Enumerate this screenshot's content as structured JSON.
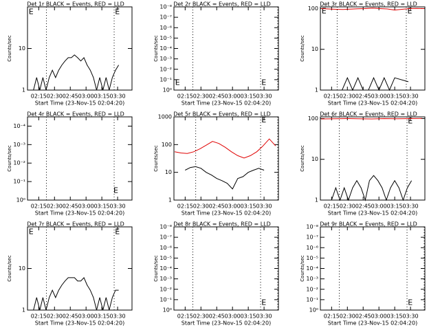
{
  "chart_data": [
    {
      "type": "line",
      "title": "Det 1r BLACK = Events, RED = LLD",
      "xlabel": "Start Time (23-Nov-15 02:04:20)",
      "ylabel": "Counts/sec",
      "log": true,
      "xlim": [
        4.33,
        103.67
      ],
      "xticks": [
        {
          "value": 15,
          "label": "02:15"
        },
        {
          "value": 30,
          "label": "02:30"
        },
        {
          "value": 45,
          "label": "02:45"
        },
        {
          "value": 60,
          "label": "03:00"
        },
        {
          "value": 75,
          "label": "03:15"
        },
        {
          "value": 90,
          "label": "03:30"
        }
      ],
      "ylim": [
        1,
        100
      ],
      "yticks": [
        1,
        10
      ],
      "event_lines": [
        22.3,
        86.7
      ],
      "annotations": [
        {
          "text": "E",
          "x": 5.5,
          "y": 75
        },
        {
          "text": "E",
          "x": 87.5,
          "y": 75
        }
      ],
      "series": [
        {
          "name": "BLACK",
          "color": "#000000",
          "x": [
            10,
            13,
            16,
            19,
            22,
            25,
            28,
            31,
            34,
            37,
            40,
            43,
            46,
            49,
            52,
            55,
            58,
            61,
            64,
            67,
            70,
            73,
            76,
            79,
            82,
            85,
            88,
            91
          ],
          "values": [
            1,
            2,
            1,
            2,
            1,
            2,
            3,
            2,
            3,
            4,
            5,
            6,
            6,
            7,
            6,
            5,
            6,
            4,
            3,
            2,
            1,
            2,
            1,
            2,
            1,
            2,
            3,
            4
          ]
        }
      ]
    },
    {
      "type": "line",
      "title": "Det 2r BLACK = Events, RED = LLD",
      "xlabel": "Start Time (23-Nov-15 02:04:20)",
      "ylabel": "Counts/sec",
      "log": false,
      "xlim": [
        4.33,
        103.67
      ],
      "xticks": [
        {
          "value": 15,
          "label": "02:15"
        },
        {
          "value": 30,
          "label": "02:30"
        },
        {
          "value": 45,
          "label": "02:45"
        },
        {
          "value": 60,
          "label": "03:00"
        },
        {
          "value": 75,
          "label": "03:15"
        },
        {
          "value": 90,
          "label": "03:30"
        }
      ],
      "ylim": [
        0,
        8
      ],
      "yticks": [
        {
          "value": 0,
          "label": "10⁰"
        },
        {
          "value": 1,
          "label": "10⁻¹"
        },
        {
          "value": 2,
          "label": "10⁻²"
        },
        {
          "value": 3,
          "label": "10⁻³"
        },
        {
          "value": 4,
          "label": "10⁻⁴"
        },
        {
          "value": 5,
          "label": "10⁻⁵"
        },
        {
          "value": 6,
          "label": "10⁻⁶"
        },
        {
          "value": 7,
          "label": "10⁻⁷"
        },
        {
          "value": 8,
          "label": "10⁻⁸"
        }
      ],
      "event_lines": [
        22.3,
        86.7,
        103
      ],
      "annotations": [
        {
          "text": "E",
          "x": 5.5,
          "y": 0.7
        },
        {
          "text": "E",
          "x": 87.5,
          "y": 0.7
        }
      ],
      "series": []
    },
    {
      "type": "line",
      "title": "Det 3r BLACK = Events, RED = LLD",
      "xlabel": "Start Time (23-Nov-15 02:04:20)",
      "ylabel": "Counts/sec",
      "log": true,
      "xlim": [
        4.33,
        103.67
      ],
      "xticks": [
        {
          "value": 15,
          "label": "02:15"
        },
        {
          "value": 30,
          "label": "02:30"
        },
        {
          "value": 45,
          "label": "02:45"
        },
        {
          "value": 60,
          "label": "03:00"
        },
        {
          "value": 75,
          "label": "03:15"
        },
        {
          "value": 90,
          "label": "03:30"
        }
      ],
      "ylim": [
        1,
        110
      ],
      "yticks": [
        1,
        10,
        100
      ],
      "event_lines": [
        20.3,
        86
      ],
      "annotations": [
        {
          "text": "E",
          "x": 5.5,
          "y": 85
        },
        {
          "text": "E",
          "x": 87,
          "y": 85
        }
      ],
      "series": [
        {
          "name": "BLACK",
          "color": "#000000",
          "x": [
            25,
            30,
            35,
            40,
            45,
            50,
            55,
            60,
            65,
            70,
            75,
            88
          ],
          "values": [
            1,
            2,
            1,
            2,
            1,
            1,
            2,
            1,
            2,
            1,
            2,
            1.6
          ]
        },
        {
          "name": "RED",
          "color": "#e00000",
          "x": [
            5,
            12,
            19,
            26,
            33,
            40,
            47,
            54,
            61,
            68,
            75,
            82,
            89,
            96,
            103
          ],
          "values": [
            100,
            98,
            96,
            95,
            97,
            99,
            100,
            102,
            100,
            98,
            92,
            96,
            100,
            101,
            100
          ]
        }
      ]
    },
    {
      "type": "line",
      "title": "Det 4r BLACK = Events, RED = LLD",
      "xlabel": "Start Time (23-Nov-15 02:04:20)",
      "ylabel": "Counts/sec",
      "log": false,
      "xlim": [
        4.33,
        103.67
      ],
      "xticks": [
        {
          "value": 15,
          "label": "02:15"
        },
        {
          "value": 30,
          "label": "02:30"
        },
        {
          "value": 45,
          "label": "02:45"
        },
        {
          "value": 60,
          "label": "03:00"
        },
        {
          "value": 75,
          "label": "03:15"
        },
        {
          "value": 90,
          "label": "03:30"
        }
      ],
      "ylim": [
        0,
        4.5
      ],
      "yticks": [
        {
          "value": 0,
          "label": "10⁰"
        },
        {
          "value": 1,
          "label": "10⁻¹"
        },
        {
          "value": 2,
          "label": "10⁻²"
        },
        {
          "value": 3,
          "label": "10⁻³"
        },
        {
          "value": 4,
          "label": "10⁻⁴"
        }
      ],
      "event_lines": [
        22.3,
        86.7
      ],
      "annotations": [
        {
          "text": "E",
          "x": 86,
          "y": 0.5
        }
      ],
      "series": []
    },
    {
      "type": "line",
      "title": "Det 5r BLACK = Events, RED = LLD",
      "xlabel": "Start Time (23-Nov-15 02:04:20)",
      "ylabel": "Counts/sec",
      "log": true,
      "xlim": [
        4.33,
        103.67
      ],
      "xticks": [
        {
          "value": 15,
          "label": "02:15"
        },
        {
          "value": 30,
          "label": "02:30"
        },
        {
          "value": 45,
          "label": "02:45"
        },
        {
          "value": 60,
          "label": "03:00"
        },
        {
          "value": 75,
          "label": "03:15"
        },
        {
          "value": 90,
          "label": "03:30"
        }
      ],
      "ylim": [
        1,
        1000
      ],
      "yticks": [
        1,
        10,
        100,
        1000
      ],
      "event_lines": [
        25,
        86.7,
        103
      ],
      "annotations": [
        {
          "text": "E",
          "x": 87.5,
          "y": 750
        }
      ],
      "series": [
        {
          "name": "BLACK",
          "color": "#000000",
          "x": [
            15,
            20,
            25,
            30,
            35,
            40,
            45,
            50,
            55,
            60,
            65,
            70,
            75,
            80,
            85,
            90
          ],
          "values": [
            12,
            15,
            16,
            14,
            10,
            8,
            6,
            5,
            4,
            2.5,
            6,
            7,
            10,
            12,
            14,
            12
          ]
        },
        {
          "name": "RED",
          "color": "#e00000",
          "x": [
            5,
            11,
            17,
            23,
            29,
            35,
            41,
            47,
            53,
            59,
            65,
            71,
            77,
            83,
            89,
            95,
            101
          ],
          "values": [
            55,
            50,
            48,
            55,
            70,
            95,
            130,
            110,
            80,
            55,
            40,
            33,
            40,
            55,
            90,
            160,
            90
          ]
        }
      ]
    },
    {
      "type": "line",
      "title": "Det 6r BLACK = Events, RED = LLD",
      "xlabel": "Start Time (23-Nov-15 02:04:20)",
      "ylabel": "Counts/sec",
      "log": true,
      "xlim": [
        4.33,
        103.67
      ],
      "xticks": [
        {
          "value": 15,
          "label": "02:15"
        },
        {
          "value": 30,
          "label": "02:30"
        },
        {
          "value": 45,
          "label": "02:45"
        },
        {
          "value": 60,
          "label": "03:00"
        },
        {
          "value": 75,
          "label": "03:15"
        },
        {
          "value": 90,
          "label": "03:30"
        }
      ],
      "ylim": [
        1,
        110
      ],
      "yticks": [
        1,
        10,
        100
      ],
      "event_lines": [
        22.3,
        86.7
      ],
      "annotations": [
        {
          "text": "E",
          "x": 87.5,
          "y": 85
        }
      ],
      "series": [
        {
          "name": "BLACK",
          "color": "#000000",
          "x": [
            15,
            19,
            23,
            27,
            31,
            35,
            39,
            43,
            47,
            51,
            55,
            59,
            63,
            67,
            71,
            75,
            79,
            83,
            87,
            91
          ],
          "values": [
            1,
            2,
            1,
            2,
            1,
            2,
            3,
            2,
            1,
            3,
            4,
            3,
            2,
            1,
            2,
            3,
            2,
            1,
            2,
            3
          ]
        },
        {
          "name": "RED",
          "color": "#e00000",
          "x": [
            5,
            17,
            29,
            41,
            53,
            65,
            77,
            89,
            101
          ],
          "values": [
            98,
            99,
            100,
            99,
            98,
            100,
            99,
            100,
            101
          ]
        }
      ]
    },
    {
      "type": "line",
      "title": "Det 7r BLACK = Events, RED = LLD",
      "xlabel": "Start Time (23-Nov-15 02:04:20)",
      "ylabel": "Counts/sec",
      "log": true,
      "xlim": [
        4.33,
        103.67
      ],
      "xticks": [
        {
          "value": 15,
          "label": "02:15"
        },
        {
          "value": 30,
          "label": "02:30"
        },
        {
          "value": 45,
          "label": "02:45"
        },
        {
          "value": 60,
          "label": "03:00"
        },
        {
          "value": 75,
          "label": "03:15"
        },
        {
          "value": 90,
          "label": "03:30"
        }
      ],
      "ylim": [
        1,
        100
      ],
      "yticks": [
        1,
        10
      ],
      "event_lines": [
        22.3,
        86.7
      ],
      "annotations": [
        {
          "text": "E",
          "x": 5.5,
          "y": 75
        },
        {
          "text": "E",
          "x": 87.5,
          "y": 75
        }
      ],
      "series": [
        {
          "name": "BLACK",
          "color": "#000000",
          "x": [
            10,
            13,
            16,
            19,
            22,
            25,
            28,
            31,
            34,
            37,
            40,
            43,
            46,
            49,
            52,
            55,
            58,
            61,
            64,
            67,
            70,
            73,
            76,
            79,
            82,
            85,
            88,
            91
          ],
          "values": [
            1,
            2,
            1,
            2,
            1,
            2,
            3,
            2,
            3,
            4,
            5,
            6,
            6,
            6,
            5,
            5,
            6,
            4,
            3,
            2,
            1,
            2,
            1,
            2,
            1,
            2,
            3,
            3
          ]
        }
      ]
    },
    {
      "type": "line",
      "title": "Det 8r BLACK = Events, RED = LLD",
      "xlabel": "Start Time (23-Nov-15 02:04:20)",
      "ylabel": "Counts/sec",
      "log": false,
      "xlim": [
        4.33,
        103.67
      ],
      "xticks": [
        {
          "value": 15,
          "label": "02:15"
        },
        {
          "value": 30,
          "label": "02:30"
        },
        {
          "value": 45,
          "label": "02:45"
        },
        {
          "value": 60,
          "label": "03:00"
        },
        {
          "value": 75,
          "label": "03:15"
        },
        {
          "value": 90,
          "label": "03:30"
        }
      ],
      "ylim": [
        0,
        8
      ],
      "yticks": [
        {
          "value": 0,
          "label": "10⁰"
        },
        {
          "value": 1,
          "label": "10⁻¹"
        },
        {
          "value": 2,
          "label": "10⁻²"
        },
        {
          "value": 3,
          "label": "10⁻³"
        },
        {
          "value": 4,
          "label": "10⁻⁴"
        },
        {
          "value": 5,
          "label": "10⁻⁵"
        },
        {
          "value": 6,
          "label": "10⁻⁶"
        },
        {
          "value": 7,
          "label": "10⁻⁷"
        },
        {
          "value": 8,
          "label": "10⁻⁸"
        }
      ],
      "event_lines": [
        22.3,
        86.7,
        103
      ],
      "annotations": [
        {
          "text": "E",
          "x": 87.5,
          "y": 0.7
        }
      ],
      "series": []
    },
    {
      "type": "line",
      "title": "Det 9r BLACK = Events, RED = LLD",
      "xlabel": "Start Time (23-Nov-15 02:04:20)",
      "ylabel": "Counts/sec",
      "log": false,
      "xlim": [
        4.33,
        103.67
      ],
      "xticks": [
        {
          "value": 15,
          "label": "02:15"
        },
        {
          "value": 30,
          "label": "02:30"
        },
        {
          "value": 45,
          "label": "02:45"
        },
        {
          "value": 60,
          "label": "03:00"
        },
        {
          "value": 75,
          "label": "03:15"
        },
        {
          "value": 90,
          "label": "03:30"
        }
      ],
      "ylim": [
        0,
        8
      ],
      "yticks": [
        {
          "value": 0,
          "label": "10⁰"
        },
        {
          "value": 1,
          "label": "10⁻¹"
        },
        {
          "value": 2,
          "label": "10⁻²"
        },
        {
          "value": 3,
          "label": "10⁻³"
        },
        {
          "value": 4,
          "label": "10⁻⁴"
        },
        {
          "value": 5,
          "label": "10⁻⁵"
        },
        {
          "value": 6,
          "label": "10⁻⁶"
        },
        {
          "value": 7,
          "label": "10⁻⁷"
        },
        {
          "value": 8,
          "label": "10⁻⁸"
        }
      ],
      "event_lines": [
        22.3,
        86.7,
        103
      ],
      "annotations": [
        {
          "text": "E",
          "x": 87.5,
          "y": 0.7
        }
      ],
      "series": []
    }
  ]
}
